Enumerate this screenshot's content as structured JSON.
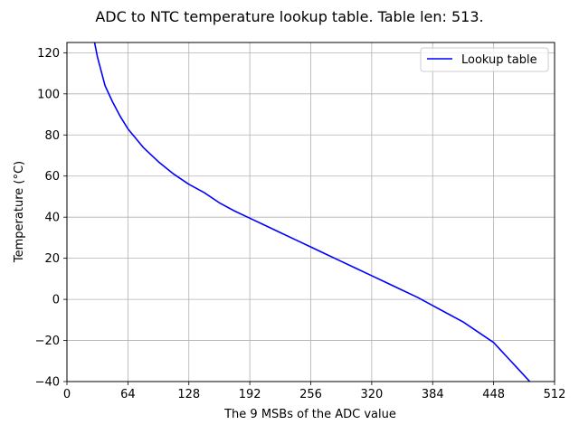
{
  "chart_data": {
    "type": "line",
    "title": "ADC to NTC temperature lookup table. Table len: 513.",
    "xlabel": "The 9 MSBs of the ADC value",
    "ylabel": "Temperature (°C)",
    "xlim": [
      0,
      512
    ],
    "ylim": [
      -40,
      125
    ],
    "xticks": [
      0,
      64,
      128,
      192,
      256,
      320,
      384,
      448,
      512
    ],
    "yticks": [
      -40,
      -20,
      0,
      20,
      40,
      60,
      80,
      100,
      120
    ],
    "grid": true,
    "legend_position": "top-right",
    "series": [
      {
        "name": "Lookup table",
        "color": "#0000ff",
        "x": [
          29,
          32,
          40,
          48,
          56,
          64,
          80,
          96,
          112,
          128,
          144,
          160,
          176,
          192,
          208,
          224,
          240,
          256,
          272,
          288,
          304,
          320,
          336,
          352,
          368,
          384,
          400,
          416,
          432,
          448,
          456,
          464,
          472,
          480,
          488,
          490
        ],
        "y": [
          125,
          118,
          104,
          96,
          89,
          83,
          74,
          67,
          61,
          56,
          52,
          47,
          43,
          39.5,
          36,
          32.5,
          29,
          25.5,
          22,
          18.5,
          15,
          11.5,
          8,
          4.5,
          1,
          -3,
          -7,
          -11,
          -16,
          -21,
          -25,
          -29,
          -33,
          -37,
          -41,
          -42
        ]
      }
    ]
  }
}
